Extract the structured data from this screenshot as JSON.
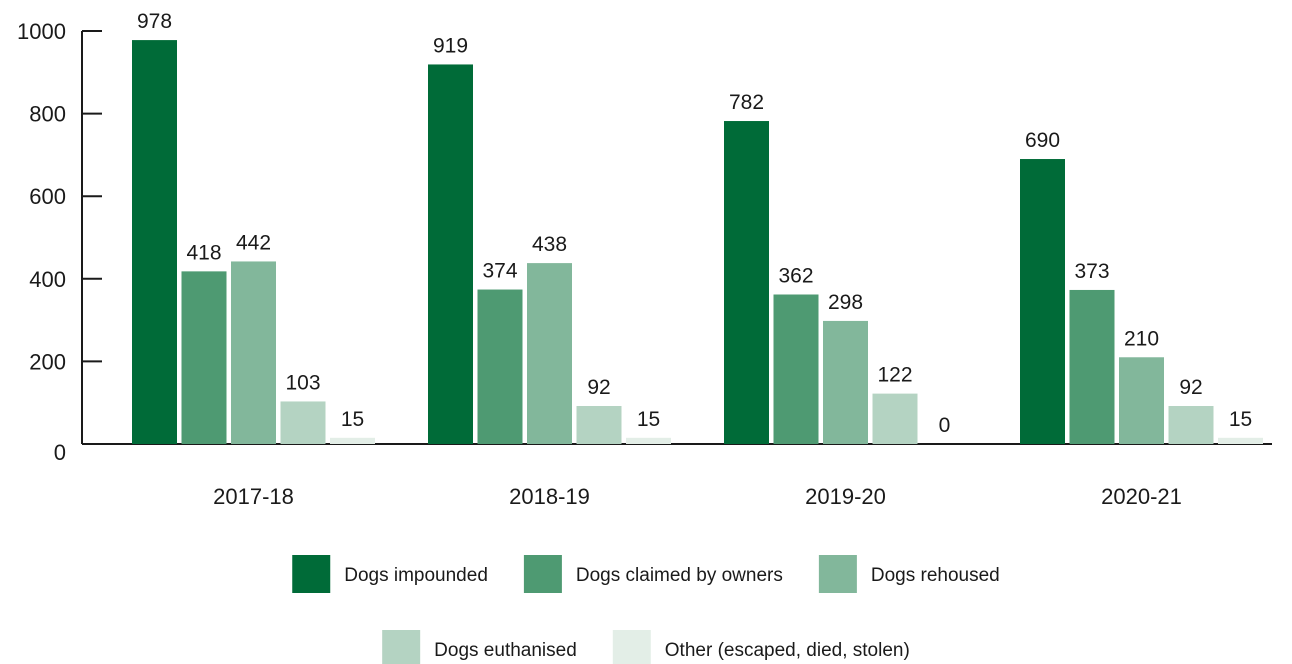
{
  "chart_data": {
    "type": "bar",
    "title": "",
    "xlabel": "",
    "ylabel": "",
    "ylim": [
      0,
      1000
    ],
    "yticks": [
      0,
      200,
      400,
      600,
      800,
      1000
    ],
    "grid": false,
    "legend_position": "bottom",
    "categories": [
      "2017-18",
      "2018-19",
      "2019-20",
      "2020-21"
    ],
    "series": [
      {
        "name": "Dogs impounded",
        "color": "#006b38",
        "values": [
          978,
          919,
          782,
          690
        ]
      },
      {
        "name": "Dogs claimed by owners",
        "color": "#4e9a72",
        "values": [
          418,
          374,
          362,
          373
        ]
      },
      {
        "name": "Dogs rehoused",
        "color": "#82b79b",
        "values": [
          442,
          438,
          298,
          210
        ]
      },
      {
        "name": "Dogs euthanised",
        "color": "#b4d3c2",
        "values": [
          103,
          92,
          122,
          92
        ]
      },
      {
        "name": "Other (escaped, died, stolen)",
        "color": "#e3eee7",
        "values": [
          15,
          15,
          0,
          15
        ]
      }
    ]
  }
}
